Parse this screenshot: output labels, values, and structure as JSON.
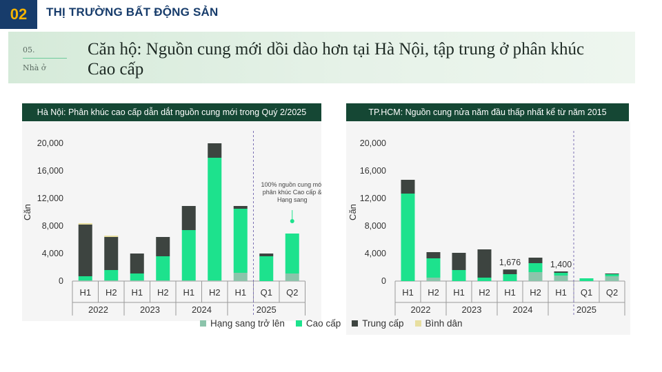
{
  "header": {
    "section_number": "02",
    "section_title": "THỊ TRƯỜNG BẤT ĐỘNG SẢN"
  },
  "hero": {
    "number": "05.",
    "category": "Nhà ở",
    "title": "Căn hộ: Nguồn cung mới dồi dào hơn tại Hà Nội, tập trung ở phân khúc Cao cấp"
  },
  "colors": {
    "hang_sang": "#8cc4ab",
    "cao_cap": "#1de28d",
    "trung_cap": "#3d4440",
    "binh_dan": "#e8dfa0",
    "header_bg": "#154734",
    "badge_bg": "#173c6b"
  },
  "legend": [
    "Hạng sang trở lên",
    "Cao cấp",
    "Trung cấp",
    "Bình dân"
  ],
  "chart_data": [
    {
      "type": "bar",
      "stacked": true,
      "title": "Hà Nội: Phân khúc cao cấp dẫn dắt nguồn cung mới trong Quý 2/2025",
      "ylabel": "Căn",
      "ylim": [
        0,
        20000
      ],
      "yticks": [
        "0",
        "4,000",
        "8,000",
        "12,000",
        "16,000",
        "20,000"
      ],
      "ytick_values": [
        0,
        4000,
        8000,
        12000,
        16000,
        20000
      ],
      "categories": [
        "H1",
        "H2",
        "H1",
        "H2",
        "H1",
        "H2",
        "H1",
        "Q1",
        "Q2"
      ],
      "years": [
        {
          "label": "2022",
          "span": 2
        },
        {
          "label": "2023",
          "span": 2
        },
        {
          "label": "2024",
          "span": 2
        },
        {
          "label": "2025",
          "span": 3
        }
      ],
      "series": [
        {
          "name": "Hạng sang trở lên",
          "values": [
            100,
            100,
            100,
            100,
            100,
            100,
            1200,
            0,
            1100
          ]
        },
        {
          "name": "Cao cấp",
          "values": [
            600,
            1500,
            1000,
            3500,
            7300,
            17800,
            9300,
            3600,
            5800
          ]
        },
        {
          "name": "Trung cấp",
          "values": [
            7500,
            4800,
            2900,
            2800,
            3500,
            2100,
            400,
            400,
            0
          ]
        },
        {
          "name": "Bình dân",
          "values": [
            200,
            200,
            0,
            0,
            0,
            0,
            0,
            0,
            0
          ]
        }
      ],
      "annotation": {
        "text": [
          "100% nguồn cung mới",
          "phân khúc Cao cấp &",
          "Hạng sang"
        ],
        "category_index": 8
      },
      "divider_before_index": 7,
      "grid": false
    },
    {
      "type": "bar",
      "stacked": true,
      "title": "TP.HCM: Nguồn cung nửa năm đầu thấp nhất kể từ năm 2015",
      "ylabel": "Căn",
      "ylim": [
        0,
        20000
      ],
      "yticks": [
        "0",
        "4,000",
        "8,000",
        "12,000",
        "16,000",
        "20,000"
      ],
      "ytick_values": [
        0,
        4000,
        8000,
        12000,
        16000,
        20000
      ],
      "categories": [
        "H1",
        "H2",
        "H1",
        "H2",
        "H1",
        "H2",
        "H1",
        "Q1",
        "Q2"
      ],
      "years": [
        {
          "label": "2022",
          "span": 2
        },
        {
          "label": "2023",
          "span": 2
        },
        {
          "label": "2024",
          "span": 2
        },
        {
          "label": "2025",
          "span": 3
        }
      ],
      "series": [
        {
          "name": "Hạng sang trở lên",
          "values": [
            0,
            500,
            0,
            0,
            0,
            1300,
            800,
            0,
            700
          ]
        },
        {
          "name": "Cao cấp",
          "values": [
            12700,
            2800,
            1600,
            500,
            1000,
            1300,
            400,
            400,
            300
          ]
        },
        {
          "name": "Trung cấp",
          "values": [
            2000,
            900,
            2500,
            4100,
            676,
            800,
            200,
            0,
            100
          ]
        },
        {
          "name": "Bình dân",
          "values": [
            0,
            0,
            0,
            0,
            0,
            0,
            0,
            0,
            0
          ]
        }
      ],
      "data_labels": [
        {
          "category_index": 4,
          "text": "1,676"
        },
        {
          "category_index": 6,
          "text": "1,400"
        }
      ],
      "divider_before_index": 7,
      "grid": false
    }
  ]
}
